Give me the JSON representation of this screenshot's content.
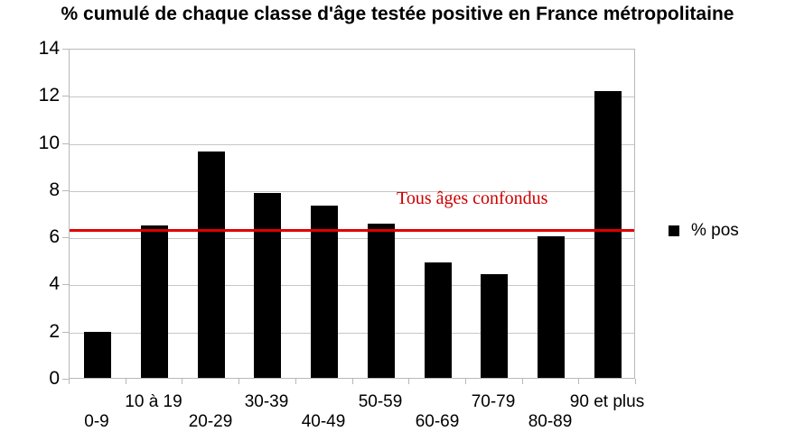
{
  "chart_data": {
    "type": "bar",
    "title": "% cumulé de chaque classe d'âge testée positive en France métropolitaine",
    "categories": [
      "0-9",
      "10 à 19",
      "20-29",
      "30-39",
      "40-49",
      "50-59",
      "60-69",
      "70-79",
      "80-89",
      "90 et plus"
    ],
    "series": [
      {
        "name": "% pos",
        "color": "#000000",
        "values": [
          1.95,
          6.45,
          9.6,
          7.85,
          7.3,
          6.55,
          4.9,
          4.4,
          6.0,
          12.15
        ]
      }
    ],
    "xlabel": "",
    "ylabel": "",
    "ylim": [
      0,
      14
    ],
    "ytick_step": 2,
    "yticks": [
      0,
      2,
      4,
      6,
      8,
      10,
      12,
      14
    ],
    "grid": true,
    "legend_position": "right",
    "reference_line": {
      "value": 6.3,
      "label": "Tous âges confondus",
      "color": "#dd0000",
      "label_color": "#cc0000"
    }
  }
}
